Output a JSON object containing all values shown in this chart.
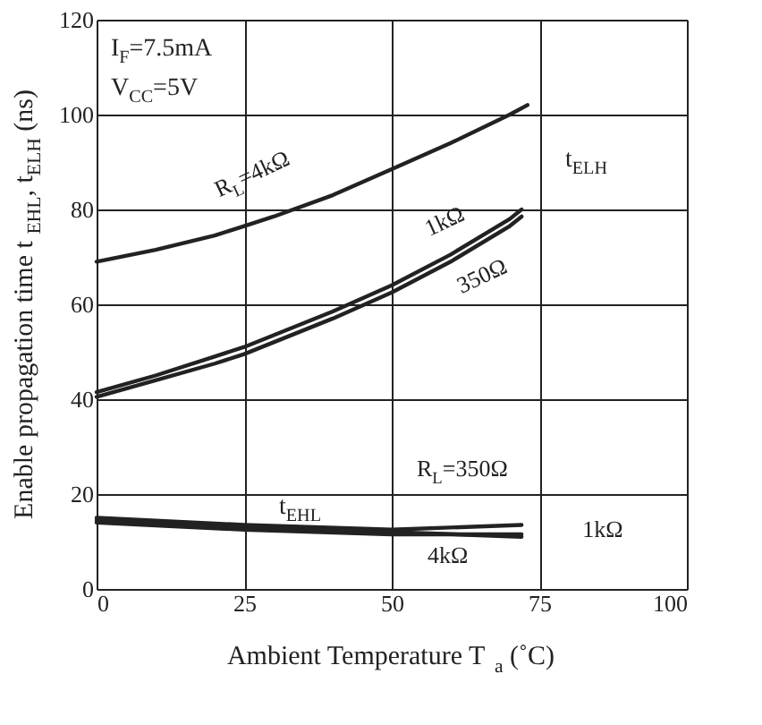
{
  "chart_data": {
    "type": "line",
    "xlabel": "Ambient Temperature  T$_{a}$ (˚C)",
    "ylabel": "Enable propagation time  t$_{EHL}$, t$_{ELH}$ (ns)",
    "x": [
      0,
      10,
      20,
      25,
      30,
      40,
      50,
      60,
      70,
      72
    ],
    "series": [
      {
        "name": "R$_{L}$=4kΩ",
        "color": "#222222",
        "x": [
          0,
          10,
          20,
          25,
          30,
          40,
          50,
          60,
          70,
          73
        ],
        "values": [
          69,
          71.5,
          74.5,
          76.5,
          78.5,
          83,
          88.5,
          94,
          100,
          102
        ]
      },
      {
        "name": "1kΩ",
        "color": "#222222",
        "values": [
          41.5,
          45,
          49,
          51,
          53.5,
          58.5,
          64,
          70.5,
          78,
          80
        ]
      },
      {
        "name": "350Ω",
        "color": "#222222",
        "values": [
          40.5,
          44,
          47.5,
          49.5,
          52,
          57,
          62.5,
          69,
          76.5,
          78.5
        ]
      },
      {
        "name": "R$_{L}$=350Ω",
        "color": "#222222",
        "x": [
          0,
          25,
          50,
          72
        ],
        "values": [
          15,
          13.5,
          12.5,
          13.5
        ]
      },
      {
        "name": "1kΩ",
        "color": "#222222",
        "x": [
          0,
          25,
          50,
          72
        ],
        "values": [
          14.5,
          13,
          12,
          11
        ]
      },
      {
        "name": "4kΩ",
        "color": "#222222",
        "x": [
          0,
          25,
          50,
          72
        ],
        "values": [
          14,
          12.5,
          11.5,
          11.5
        ]
      }
    ],
    "annotations": [
      "I$_{F}$=7.5mA",
      "V$_{CC}$=5V",
      "t$_{ELH}$",
      "t$_{EHL}$"
    ],
    "xlim": [
      0,
      100
    ],
    "xticks": [
      0,
      25,
      50,
      75,
      100
    ],
    "ylim": [
      0,
      120
    ],
    "yticks": [
      0,
      20,
      40,
      60,
      80,
      100,
      120
    ],
    "grid": true,
    "legend": false,
    "marker": "none",
    "line_style": "solid"
  }
}
